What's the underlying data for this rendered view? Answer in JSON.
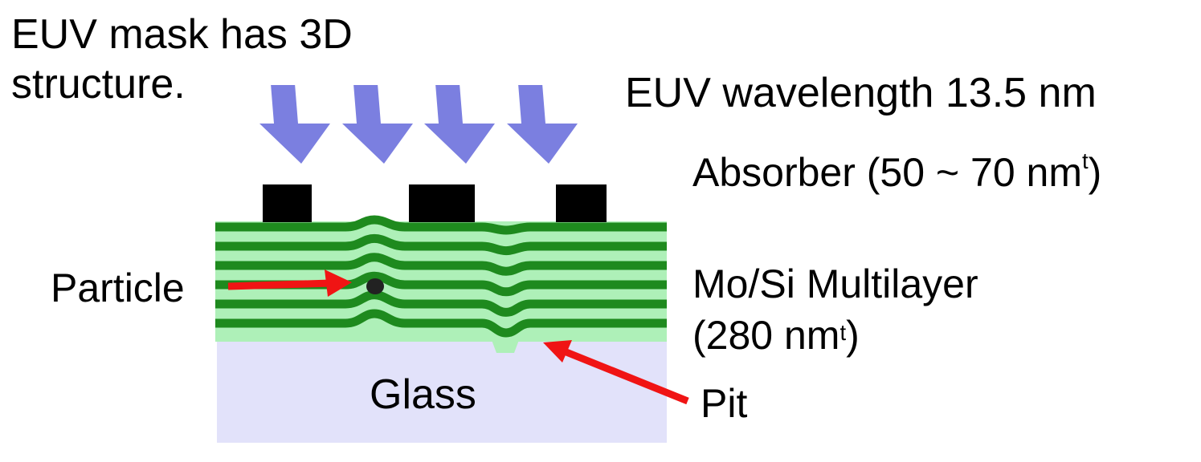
{
  "title": {
    "line1": "EUV mask has 3D",
    "line2": "structure."
  },
  "wavelength_label": "EUV wavelength 13.5 nm",
  "absorber": {
    "text": "Absorber (50 ~ 70 nm",
    "sup": "t",
    "close": ")"
  },
  "multilayer": {
    "line1": "Mo/Si Multilayer",
    "line2_open": "(280 nm",
    "sup": "t",
    "close": ")"
  },
  "particle_label": "Particle",
  "glass_label": "Glass",
  "pit_label": "Pit",
  "colors": {
    "arrow_blue": "#7b7fe0",
    "absorber": "#000000",
    "layer_dark": "#1e8a1e",
    "layer_light": "#aef0b8",
    "glass": "#e2e2fa",
    "pointer_red": "#f01414",
    "particle": "#222222"
  }
}
